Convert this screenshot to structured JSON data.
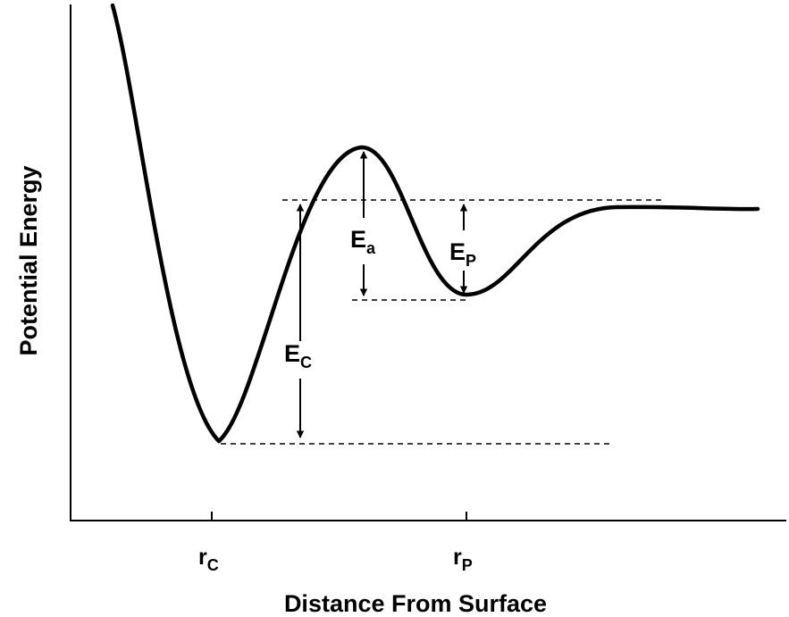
{
  "diagram": {
    "y_axis_label": "Potential Energy",
    "x_axis_label": "Distance From Surface",
    "x_ticks": [
      {
        "main": "r",
        "sub": "C"
      },
      {
        "main": "r",
        "sub": "P"
      }
    ],
    "energy_labels": {
      "chemisorption": {
        "main": "E",
        "sub": "C"
      },
      "activation": {
        "main": "E",
        "sub": "a"
      },
      "physisorption": {
        "main": "E",
        "sub": "P"
      }
    },
    "colors": {
      "curve": "#000000",
      "axes": "#000000",
      "reference_lines": "#000000",
      "background": "#ffffff"
    }
  }
}
